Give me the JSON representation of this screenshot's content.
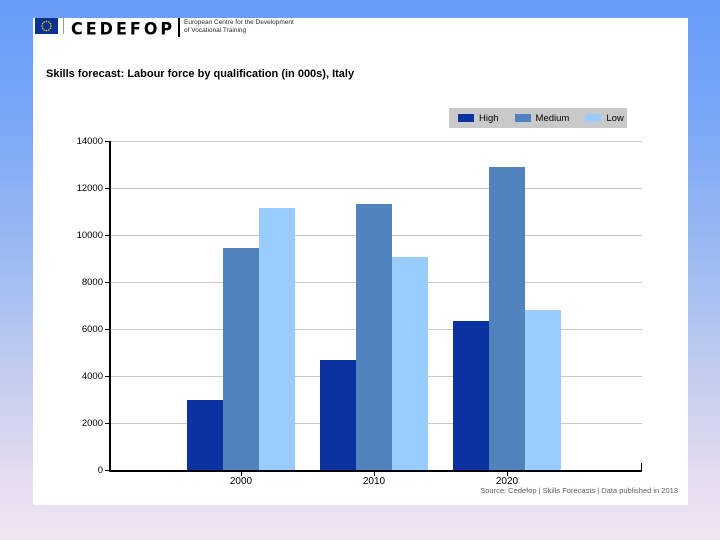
{
  "background": {
    "gradient_top_color": "#679cf8",
    "gradient_bottom_color": "#f1e5f2",
    "slide_color": "#ffffff"
  },
  "header": {
    "eu_flag_icon": "eu-flag",
    "logo_text": "CEDEFOP",
    "org_line1": "European Centre for the Development",
    "org_line2": "of Vocational Training"
  },
  "slide": {
    "title": "Skills forecast: Labour force by qualification (in 000s), Italy",
    "source": "Source: Cedefop | Skills Forecasts | Data published in 2013"
  },
  "chart_data": {
    "type": "bar",
    "title": "Skills forecast: Labour force by qualification (in 000s), Italy",
    "categories": [
      "2000",
      "2010",
      "2020"
    ],
    "series": [
      {
        "name": "High",
        "color": "#0a32a0",
        "values": [
          3000,
          4700,
          6330
        ]
      },
      {
        "name": "Medium",
        "color": "#5082be",
        "values": [
          9450,
          11300,
          12880
        ]
      },
      {
        "name": "Low",
        "color": "#99ccff",
        "values": [
          11150,
          9050,
          6820
        ]
      }
    ],
    "ylim": [
      0,
      14000
    ],
    "ytick_step": 2000,
    "yticks": [
      0,
      2000,
      4000,
      6000,
      8000,
      10000,
      12000,
      14000
    ],
    "grid": true,
    "legend_position": "top-right",
    "gridline_color": "#c9c9c9",
    "legend_background": "#c9c9c9"
  }
}
